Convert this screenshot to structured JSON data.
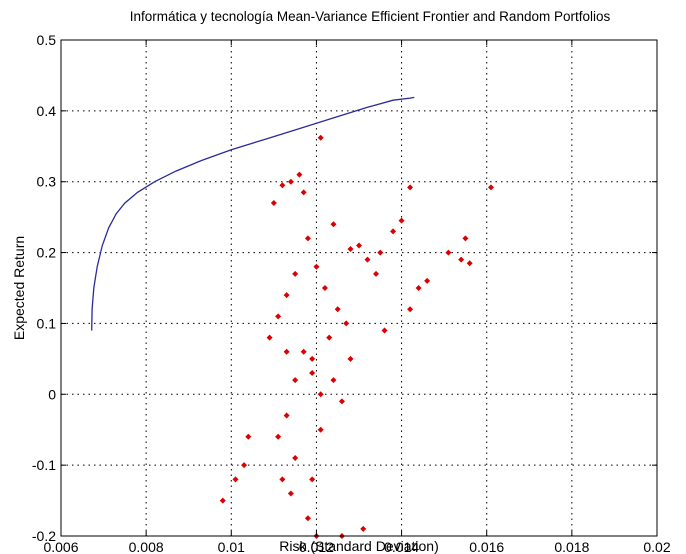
{
  "chart_data": {
    "type": "scatter",
    "title": "Informática y tecnología Mean-Variance Efficient Frontier and Random Portfolios",
    "xlabel": "Risk (Standard Deviation)",
    "ylabel": "Expected Return",
    "xlim": [
      0.006,
      0.02
    ],
    "ylim": [
      -0.2,
      0.5
    ],
    "xticks": [
      0.006,
      0.008,
      0.01,
      0.012,
      0.014,
      0.016,
      0.018,
      0.02
    ],
    "xtick_labels": [
      "0.006",
      "0.008",
      "0.01",
      "0.012",
      "0.014",
      "0.016",
      "0.018",
      "0.02"
    ],
    "yticks": [
      -0.2,
      -0.1,
      0,
      0.1,
      0.2,
      0.3,
      0.4,
      0.5
    ],
    "ytick_labels": [
      "-0.2",
      "-0.1",
      "0",
      "0.1",
      "0.2",
      "0.3",
      "0.4",
      "0.5"
    ],
    "grid": true,
    "colors": {
      "frontier": "#2a2a9a",
      "portfolios": "#dd0000"
    },
    "series": [
      {
        "kind": "line",
        "x": [
          0.00672,
          0.00673,
          0.00677,
          0.00685,
          0.00697,
          0.00712,
          0.0073,
          0.0075,
          0.0078,
          0.0082,
          0.0087,
          0.0093,
          0.01,
          0.0108,
          0.0116,
          0.0124,
          0.0132,
          0.0138,
          0.0142,
          0.0143
        ],
        "y": [
          0.09,
          0.12,
          0.15,
          0.18,
          0.21,
          0.235,
          0.255,
          0.27,
          0.285,
          0.3,
          0.315,
          0.33,
          0.345,
          0.36,
          0.375,
          0.39,
          0.405,
          0.415,
          0.418,
          0.419
        ]
      },
      {
        "kind": "scatter",
        "x": [
          0.0121,
          0.0142,
          0.0161,
          0.0114,
          0.0112,
          0.0116,
          0.0117,
          0.011,
          0.0124,
          0.014,
          0.013,
          0.0138,
          0.0135,
          0.0132,
          0.0128,
          0.0155,
          0.0151,
          0.0146,
          0.0154,
          0.0156,
          0.0144,
          0.0142,
          0.0134,
          0.0136,
          0.0118,
          0.012,
          0.0122,
          0.0125,
          0.0127,
          0.0123,
          0.0119,
          0.0115,
          0.0113,
          0.0111,
          0.0109,
          0.0117,
          0.0119,
          0.0121,
          0.0124,
          0.0126,
          0.0128,
          0.0113,
          0.0111,
          0.0115,
          0.0112,
          0.0114,
          0.0126,
          0.0131,
          0.0118,
          0.012,
          0.0119,
          0.0115,
          0.0113,
          0.0121,
          0.0103,
          0.0101,
          0.0098,
          0.0104
        ],
        "y": [
          0.362,
          0.292,
          0.292,
          0.3,
          0.295,
          0.31,
          0.285,
          0.27,
          0.24,
          0.245,
          0.21,
          0.23,
          0.2,
          0.19,
          0.205,
          0.22,
          0.2,
          0.16,
          0.19,
          0.185,
          0.15,
          0.12,
          0.17,
          0.09,
          0.22,
          0.18,
          0.15,
          0.12,
          0.1,
          0.08,
          0.05,
          0.17,
          0.14,
          0.11,
          0.08,
          0.06,
          0.03,
          0.0,
          0.02,
          -0.01,
          0.05,
          -0.03,
          -0.06,
          -0.09,
          -0.12,
          -0.14,
          -0.2,
          -0.19,
          -0.175,
          -0.2,
          -0.12,
          0.02,
          0.06,
          -0.05,
          -0.1,
          -0.12,
          -0.15,
          -0.06
        ]
      }
    ]
  }
}
